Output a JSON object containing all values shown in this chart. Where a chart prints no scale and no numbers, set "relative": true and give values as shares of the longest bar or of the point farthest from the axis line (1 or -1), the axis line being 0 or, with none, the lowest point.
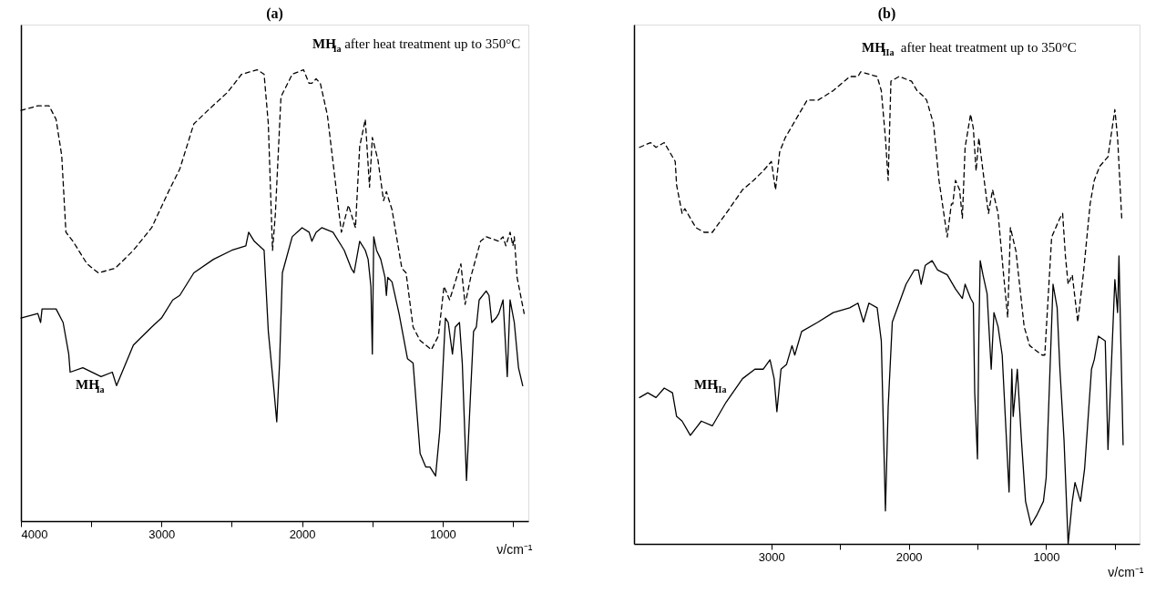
{
  "chart_data": [
    {
      "type": "line",
      "title": "(a)",
      "xlabel": "ν/cm⁻¹",
      "relative": true,
      "xlim": [
        4000,
        390
      ],
      "xticks": [
        4000,
        {
          "value": 3500,
          "label": null
        },
        3000,
        {
          "value": 2500,
          "label": null
        },
        2000,
        {
          "value": 1500,
          "label": null
        },
        1000,
        {
          "value": 500,
          "label": null
        }
      ],
      "series": [
        {
          "name": "MH$_{Ia}$ after heat treatment up to 350°C",
          "color": "#000000",
          "line_style": "dashed",
          "x": [
            4000,
            3880,
            3800,
            3750,
            3710,
            3680,
            3630,
            3530,
            3450,
            3330,
            3200,
            3070,
            2950,
            2870,
            2770,
            2670,
            2530,
            2430,
            2320,
            2270,
            2240,
            2210,
            2190,
            2150,
            2070,
            1990,
            1950,
            1930,
            1900,
            1870,
            1820,
            1770,
            1740,
            1720,
            1670,
            1620,
            1590,
            1550,
            1520,
            1500,
            1460,
            1420,
            1400,
            1360,
            1290,
            1260,
            1210,
            1160,
            1080,
            1030,
            990,
            950,
            870,
            840,
            800,
            730,
            690,
            600,
            570,
            550,
            520,
            500,
            490,
            470,
            420
          ],
          "values": [
            0.91,
            0.92,
            0.92,
            0.89,
            0.81,
            0.64,
            0.62,
            0.57,
            0.55,
            0.56,
            0.6,
            0.65,
            0.73,
            0.78,
            0.88,
            0.91,
            0.95,
            0.99,
            1.0,
            0.99,
            0.88,
            0.6,
            0.68,
            0.94,
            0.99,
            1.0,
            0.97,
            0.97,
            0.98,
            0.97,
            0.9,
            0.77,
            0.69,
            0.64,
            0.7,
            0.65,
            0.83,
            0.89,
            0.74,
            0.85,
            0.8,
            0.71,
            0.73,
            0.69,
            0.56,
            0.55,
            0.43,
            0.4,
            0.38,
            0.41,
            0.52,
            0.49,
            0.57,
            0.48,
            0.54,
            0.62,
            0.63,
            0.62,
            0.63,
            0.61,
            0.64,
            0.61,
            0.63,
            0.54,
            0.46
          ]
        },
        {
          "name": "MH$_{Ia}$",
          "color": "#000000",
          "line_style": "solid",
          "x": [
            4000,
            3880,
            3860,
            3850,
            3750,
            3700,
            3660,
            3650,
            3560,
            3430,
            3350,
            3320,
            3200,
            3070,
            3000,
            2920,
            2870,
            2770,
            2630,
            2500,
            2400,
            2380,
            2340,
            2270,
            2240,
            2200,
            2180,
            2160,
            2140,
            2070,
            2000,
            1950,
            1930,
            1900,
            1860,
            1780,
            1720,
            1700,
            1650,
            1630,
            1590,
            1550,
            1530,
            1510,
            1500,
            1490,
            1470,
            1440,
            1410,
            1400,
            1390,
            1360,
            1310,
            1280,
            1250,
            1210,
            1160,
            1120,
            1090,
            1050,
            1020,
            980,
            960,
            930,
            910,
            880,
            860,
            830,
            800,
            780,
            760,
            740,
            690,
            670,
            650,
            620,
            600,
            570,
            540,
            520,
            490,
            460,
            430
          ],
          "values": [
            0.45,
            0.46,
            0.44,
            0.47,
            0.47,
            0.44,
            0.37,
            0.33,
            0.34,
            0.32,
            0.33,
            0.3,
            0.39,
            0.43,
            0.45,
            0.49,
            0.5,
            0.55,
            0.58,
            0.6,
            0.61,
            0.64,
            0.62,
            0.6,
            0.42,
            0.29,
            0.22,
            0.35,
            0.55,
            0.63,
            0.65,
            0.64,
            0.62,
            0.64,
            0.65,
            0.64,
            0.61,
            0.6,
            0.56,
            0.55,
            0.62,
            0.6,
            0.58,
            0.52,
            0.37,
            0.63,
            0.6,
            0.58,
            0.54,
            0.5,
            0.54,
            0.53,
            0.46,
            0.41,
            0.36,
            0.35,
            0.15,
            0.12,
            0.12,
            0.1,
            0.2,
            0.45,
            0.44,
            0.37,
            0.43,
            0.44,
            0.35,
            0.09,
            0.29,
            0.42,
            0.43,
            0.49,
            0.51,
            0.5,
            0.44,
            0.45,
            0.46,
            0.49,
            0.32,
            0.49,
            0.44,
            0.34,
            0.3
          ]
        }
      ]
    },
    {
      "type": "line",
      "title": "(b)",
      "xlabel": "ν/cm⁻¹",
      "relative": true,
      "xlim": [
        4000,
        320
      ],
      "xticks": [
        3000,
        {
          "value": 2500,
          "label": null
        },
        2000,
        {
          "value": 1500,
          "label": null
        },
        1000,
        {
          "value": 500,
          "label": null
        }
      ],
      "series": [
        {
          "name": "MH$_{IIa}$ after heat treatment up to 350°C",
          "color": "#000000",
          "line_style": "dashed",
          "x": [
            3960,
            3880,
            3840,
            3780,
            3740,
            3700,
            3690,
            3650,
            3630,
            3550,
            3490,
            3430,
            3330,
            3210,
            3130,
            3060,
            3000,
            2970,
            2940,
            2900,
            2820,
            2740,
            2660,
            2550,
            2430,
            2370,
            2350,
            2230,
            2200,
            2170,
            2150,
            2130,
            2070,
            1980,
            1940,
            1900,
            1870,
            1820,
            1780,
            1720,
            1690,
            1680,
            1660,
            1630,
            1610,
            1590,
            1550,
            1530,
            1510,
            1490,
            1460,
            1420,
            1390,
            1350,
            1310,
            1280,
            1260,
            1220,
            1160,
            1120,
            1030,
            1010,
            960,
            900,
            880,
            860,
            840,
            810,
            770,
            730,
            680,
            650,
            610,
            550,
            500,
            480,
            450
          ],
          "values": [
            0.84,
            0.85,
            0.84,
            0.85,
            0.83,
            0.81,
            0.76,
            0.7,
            0.71,
            0.67,
            0.66,
            0.66,
            0.7,
            0.75,
            0.77,
            0.79,
            0.81,
            0.75,
            0.83,
            0.86,
            0.9,
            0.94,
            0.94,
            0.96,
            0.99,
            0.99,
            1.0,
            0.99,
            0.96,
            0.86,
            0.77,
            0.98,
            0.99,
            0.98,
            0.96,
            0.95,
            0.94,
            0.89,
            0.77,
            0.65,
            0.72,
            0.72,
            0.77,
            0.75,
            0.69,
            0.84,
            0.91,
            0.88,
            0.79,
            0.86,
            0.79,
            0.7,
            0.75,
            0.7,
            0.57,
            0.48,
            0.67,
            0.62,
            0.46,
            0.42,
            0.4,
            0.4,
            0.65,
            0.69,
            0.7,
            0.61,
            0.55,
            0.57,
            0.47,
            0.57,
            0.72,
            0.77,
            0.8,
            0.82,
            0.92,
            0.86,
            0.69
          ]
        },
        {
          "name": "MH$_{IIa}$",
          "color": "#000000",
          "line_style": "solid",
          "x": [
            3960,
            3900,
            3840,
            3780,
            3720,
            3690,
            3650,
            3590,
            3510,
            3430,
            3330,
            3210,
            3120,
            3060,
            3010,
            2980,
            2960,
            2930,
            2890,
            2850,
            2830,
            2780,
            2660,
            2550,
            2430,
            2370,
            2330,
            2290,
            2230,
            2200,
            2170,
            2150,
            2120,
            2070,
            2020,
            1960,
            1930,
            1910,
            1880,
            1830,
            1790,
            1720,
            1660,
            1610,
            1590,
            1550,
            1530,
            1520,
            1500,
            1490,
            1480,
            1460,
            1430,
            1400,
            1380,
            1350,
            1320,
            1270,
            1250,
            1240,
            1210,
            1180,
            1150,
            1110,
            1070,
            1020,
            1000,
            950,
            920,
            900,
            870,
            840,
            810,
            790,
            750,
            720,
            670,
            650,
            620,
            570,
            550,
            500,
            480,
            470,
            440
          ],
          "values": [
            0.31,
            0.32,
            0.31,
            0.33,
            0.32,
            0.27,
            0.26,
            0.23,
            0.26,
            0.25,
            0.3,
            0.35,
            0.37,
            0.37,
            0.39,
            0.35,
            0.28,
            0.37,
            0.38,
            0.42,
            0.4,
            0.45,
            0.47,
            0.49,
            0.5,
            0.51,
            0.47,
            0.51,
            0.5,
            0.43,
            0.07,
            0.29,
            0.47,
            0.51,
            0.55,
            0.58,
            0.58,
            0.55,
            0.59,
            0.6,
            0.58,
            0.57,
            0.54,
            0.52,
            0.55,
            0.52,
            0.51,
            0.32,
            0.18,
            0.44,
            0.6,
            0.57,
            0.53,
            0.37,
            0.49,
            0.46,
            0.4,
            0.11,
            0.37,
            0.27,
            0.37,
            0.22,
            0.09,
            0.04,
            0.06,
            0.09,
            0.14,
            0.55,
            0.5,
            0.37,
            0.22,
            0.0,
            0.09,
            0.13,
            0.09,
            0.16,
            0.37,
            0.39,
            0.44,
            0.43,
            0.2,
            0.56,
            0.49,
            0.61,
            0.21
          ]
        }
      ]
    }
  ]
}
